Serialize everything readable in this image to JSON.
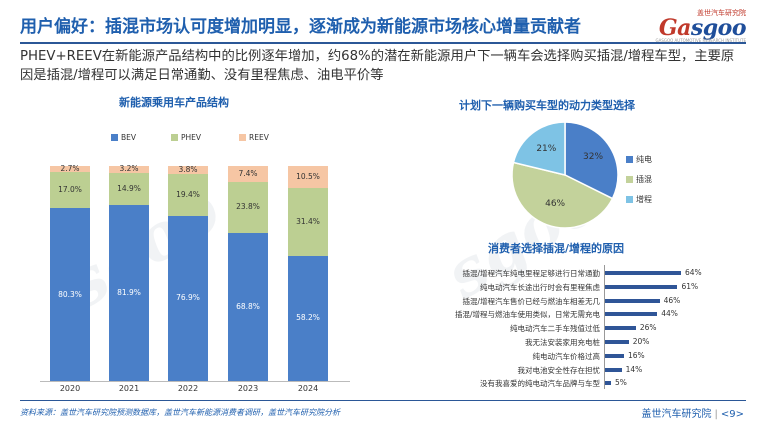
{
  "header": {
    "title": "用户偏好：插混市场认可度增加明显，逐渐成为新能源市场核心增量贡献者",
    "logo_top": "盖世汽车研究院",
    "logo_main_a": "Ga",
    "logo_main_b": "sgoo",
    "logo_sub": "GASGOO AUTOMOTIVE RESEARCH INSTITUTE"
  },
  "subtitle": "PHEV+REEV在新能源产品结构中的比例逐年增加，约68%的潜在新能源用户下一辆车会选择购买插混/增程车型，主要原因是插混/增程可以满足日常通勤、没有里程焦虑、油电平价等",
  "colors": {
    "bev": "#4a7fc8",
    "phev": "#bccf92",
    "reev": "#f6c6a4",
    "pie_bev": "#4a7fc8",
    "pie_phev": "#c3d29b",
    "pie_reev": "#7ec3e5",
    "hbar": "#2f5597",
    "title": "#1f5fae"
  },
  "chart_data": [
    {
      "type": "bar",
      "stacked": true,
      "title": "新能源乘用车产品结构",
      "categories": [
        "2020",
        "2021",
        "2022",
        "2023",
        "2024"
      ],
      "series": [
        {
          "name": "BEV",
          "values": [
            80.3,
            81.9,
            76.9,
            68.8,
            58.2
          ],
          "labels": [
            "80.3%",
            "81.9%",
            "76.9%",
            "68.8%",
            "58.2%"
          ]
        },
        {
          "name": "PHEV",
          "values": [
            17.0,
            14.9,
            19.4,
            23.8,
            31.4
          ],
          "labels": [
            "17.0%",
            "14.9%",
            "19.4%",
            "23.8%",
            "31.4%"
          ]
        },
        {
          "name": "REEV",
          "values": [
            2.7,
            3.2,
            3.8,
            7.4,
            10.5
          ],
          "labels": [
            "2.7%",
            "3.2%",
            "3.8%",
            "7.4%",
            "10.5%"
          ]
        }
      ],
      "ylim": [
        0,
        100
      ],
      "legend": "top"
    },
    {
      "type": "pie",
      "title": "计划下一辆购买车型的动力类型选择",
      "slices": [
        {
          "name": "纯电",
          "value": 32,
          "label": "32%"
        },
        {
          "name": "插混",
          "value": 46,
          "label": "46%"
        },
        {
          "name": "增程",
          "value": 21,
          "label": "21%"
        }
      ],
      "legend": "right"
    },
    {
      "type": "bar",
      "orientation": "horizontal",
      "title": "消费者选择插混/增程的原因",
      "categories": [
        "插混/增程汽车纯电里程足够进行日常通勤",
        "纯电动汽车长途出行时会有里程焦虑",
        "插混/增程汽车售价已经与燃油车相差无几",
        "插混/增程与燃油车使用类似，日常无需充电",
        "纯电动汽车二手车残值过低",
        "我无法安装家用充电桩",
        "纯电动汽车价格过高",
        "我对电池安全性存在担忧",
        "没有我喜爱的纯电动汽车品牌与车型"
      ],
      "values": [
        64,
        61,
        46,
        44,
        26,
        20,
        16,
        14,
        5
      ],
      "labels": [
        "64%",
        "61%",
        "46%",
        "44%",
        "26%",
        "20%",
        "16%",
        "14%",
        "5%"
      ],
      "xlim": [
        0,
        70
      ]
    }
  ],
  "footer": {
    "source": "资料来源：盖世汽车研究院预测数据库，盖世汽车新能源消费者调研，盖世汽车研究院分析",
    "brand": "盖世汽车研究院",
    "page": "<9>"
  }
}
